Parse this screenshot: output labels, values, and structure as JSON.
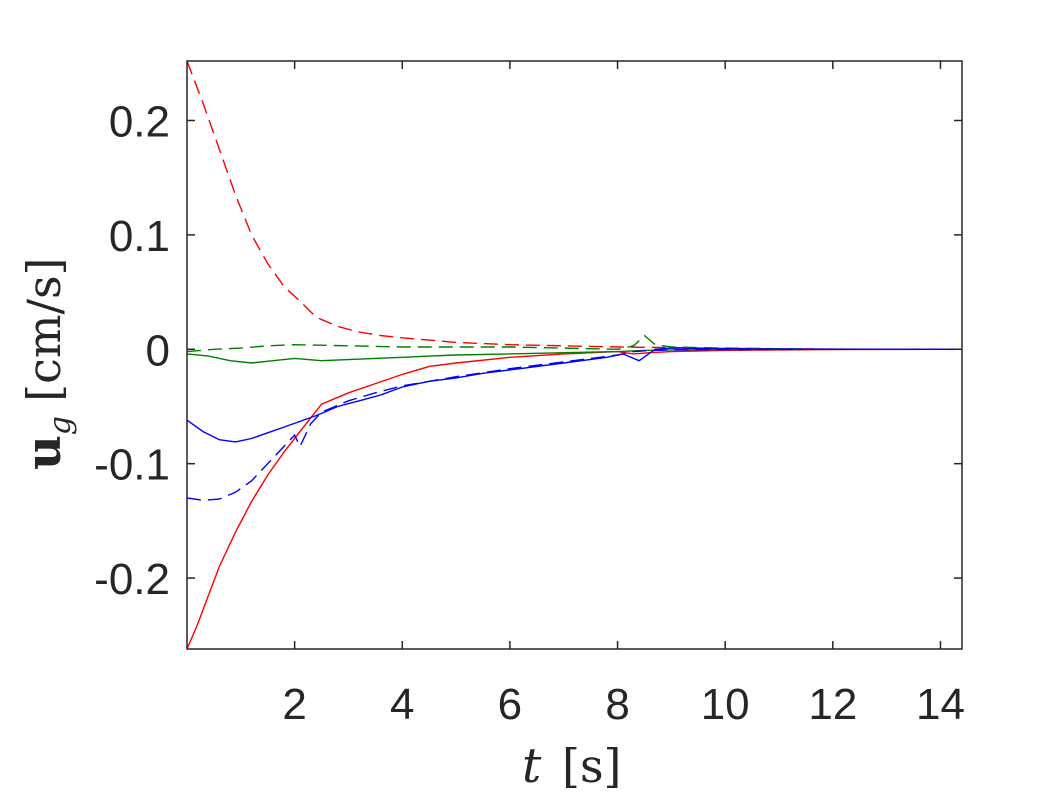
{
  "chart_data": {
    "type": "line",
    "title": "",
    "xlabel": "t [s]",
    "ylabel": "u_g [cm/s]",
    "xlim": [
      0.0,
      14.4
    ],
    "ylim": [
      -0.262,
      0.252
    ],
    "xticks": [
      "2",
      "4",
      "6",
      "8",
      "10",
      "12",
      "14"
    ],
    "yticks": [
      "-0.2",
      "-0.1",
      "0",
      "0.1",
      "0.2"
    ],
    "grid": false,
    "legend": "none",
    "series": [
      {
        "color": "#ff0000",
        "style": "dashed",
        "x": [
          0.0,
          0.3,
          0.6,
          0.9,
          1.2,
          1.5,
          1.8,
          2.1,
          2.4,
          2.8,
          3.2,
          3.6,
          4.0,
          4.5,
          5.0,
          6.0,
          7.0,
          8.0,
          9.0,
          10.0,
          11.0,
          12.0,
          13.0,
          14.4
        ],
        "y": [
          0.252,
          0.215,
          0.175,
          0.135,
          0.1,
          0.075,
          0.055,
          0.042,
          0.028,
          0.02,
          0.015,
          0.012,
          0.01,
          0.008,
          0.006,
          0.004,
          0.003,
          0.002,
          0.0015,
          0.0008,
          0.0004,
          0.0002,
          0.0001,
          0.0
        ]
      },
      {
        "color": "#ff0000",
        "style": "solid",
        "x": [
          0.0,
          0.2,
          0.4,
          0.6,
          0.9,
          1.2,
          1.5,
          1.8,
          2.1,
          2.5,
          3.0,
          3.5,
          4.0,
          4.5,
          5.0,
          6.0,
          7.0,
          8.0,
          8.3,
          8.6,
          9.0,
          10.0,
          11.0,
          12.0,
          13.0,
          14.4
        ],
        "y": [
          -0.262,
          -0.24,
          -0.215,
          -0.19,
          -0.16,
          -0.133,
          -0.11,
          -0.09,
          -0.072,
          -0.048,
          -0.038,
          -0.03,
          -0.022,
          -0.015,
          -0.012,
          -0.007,
          -0.004,
          -0.002,
          -0.004,
          -0.003,
          -0.002,
          -0.001,
          -0.0005,
          -0.0002,
          -0.0001,
          0.0
        ]
      },
      {
        "color": "#008000",
        "style": "dashed",
        "x": [
          0.0,
          0.5,
          1.0,
          1.5,
          2.0,
          3.0,
          4.0,
          5.0,
          6.0,
          7.0,
          8.0,
          8.3,
          8.5,
          8.7,
          9.0,
          10.0,
          11.0,
          12.0,
          13.0,
          14.4
        ],
        "y": [
          -0.002,
          0.0,
          0.001,
          0.003,
          0.004,
          0.003,
          0.002,
          0.002,
          0.002,
          0.001,
          0.0,
          0.003,
          0.012,
          0.004,
          0.002,
          0.001,
          0.0005,
          0.0002,
          0.0001,
          0.0
        ]
      },
      {
        "color": "#008000",
        "style": "solid",
        "x": [
          0.0,
          0.4,
          0.8,
          1.2,
          1.6,
          2.0,
          2.5,
          3.0,
          3.5,
          4.0,
          4.5,
          5.0,
          6.0,
          7.0,
          8.0,
          8.5,
          9.0,
          10.0,
          11.0,
          12.0,
          13.0,
          14.4
        ],
        "y": [
          -0.004,
          -0.006,
          -0.01,
          -0.012,
          -0.01,
          -0.008,
          -0.01,
          -0.009,
          -0.008,
          -0.007,
          -0.006,
          -0.005,
          -0.004,
          -0.003,
          -0.002,
          -0.001,
          -0.0005,
          -0.0002,
          -0.0001,
          0.0,
          0.0,
          0.0
        ]
      },
      {
        "color": "#0000ff",
        "style": "solid",
        "x": [
          0.0,
          0.3,
          0.6,
          0.9,
          1.2,
          1.5,
          1.8,
          2.1,
          2.4,
          2.8,
          3.2,
          3.6,
          4.0,
          4.5,
          5.0,
          5.5,
          6.0,
          7.0,
          7.8,
          8.1,
          8.4,
          8.7,
          9.0,
          10.0,
          11.0,
          12.0,
          13.0,
          14.4
        ],
        "y": [
          -0.062,
          -0.072,
          -0.079,
          -0.081,
          -0.078,
          -0.073,
          -0.068,
          -0.063,
          -0.058,
          -0.05,
          -0.045,
          -0.04,
          -0.033,
          -0.028,
          -0.025,
          -0.021,
          -0.018,
          -0.012,
          -0.007,
          -0.004,
          -0.01,
          0.0,
          0.001,
          0.0005,
          0.0002,
          0.0001,
          0.0,
          0.0
        ]
      },
      {
        "color": "#0000ff",
        "style": "dashed",
        "x": [
          0.0,
          0.3,
          0.6,
          0.9,
          1.2,
          1.5,
          1.8,
          2.0,
          2.1,
          2.3,
          2.5,
          3.0,
          3.5,
          4.0,
          4.5,
          5.0,
          6.0,
          7.0,
          8.0,
          8.3,
          8.6,
          9.0,
          10.0,
          11.0,
          12.0,
          13.0,
          14.4
        ],
        "y": [
          -0.13,
          -0.132,
          -0.131,
          -0.125,
          -0.115,
          -0.1,
          -0.085,
          -0.075,
          -0.085,
          -0.065,
          -0.055,
          -0.045,
          -0.038,
          -0.032,
          -0.028,
          -0.024,
          -0.017,
          -0.011,
          -0.005,
          -0.002,
          -0.001,
          -0.0005,
          -0.0002,
          -0.0001,
          0.0,
          0.0,
          0.0
        ]
      }
    ]
  }
}
